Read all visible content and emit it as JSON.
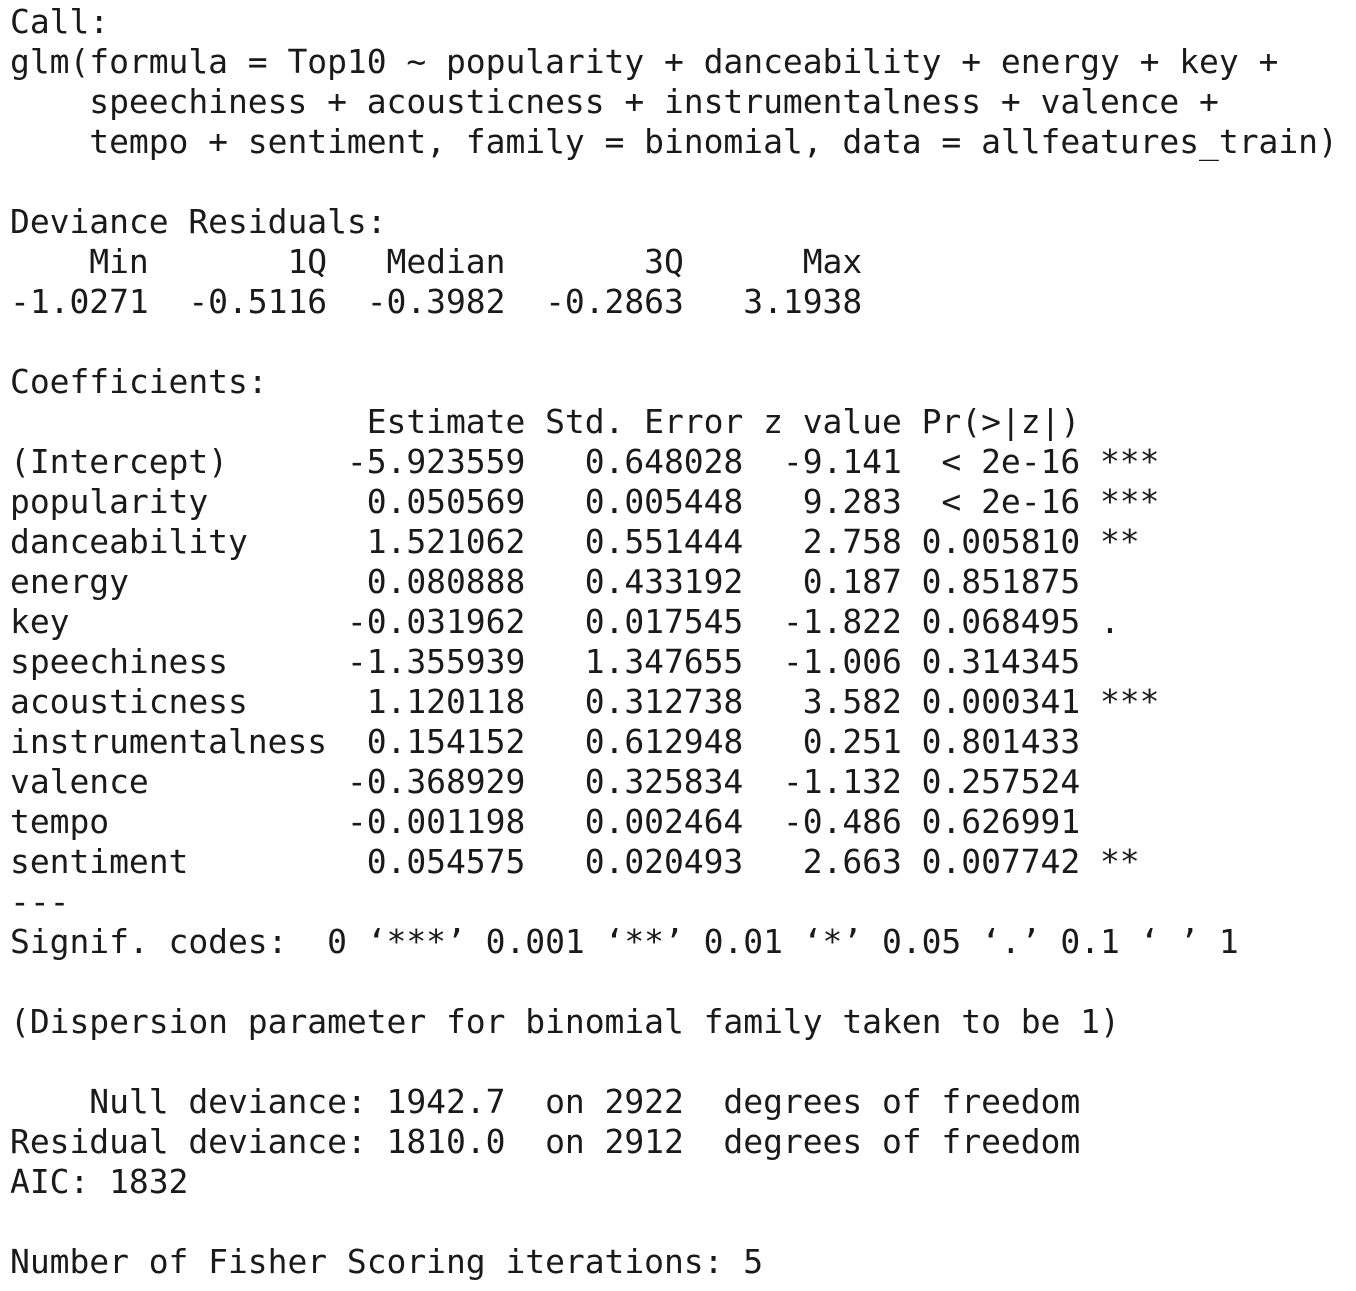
{
  "console": {
    "lines": [
      "Call:",
      "glm(formula = Top10 ~ popularity + danceability + energy + key +",
      "    speechiness + acousticness + instrumentalness + valence +",
      "    tempo + sentiment, family = binomial, data = allfeatures_train)",
      "",
      "Deviance Residuals:",
      "    Min       1Q   Median       3Q      Max",
      "-1.0271  -0.5116  -0.3982  -0.2863   3.1938",
      "",
      "Coefficients:",
      "                  Estimate Std. Error z value Pr(>|z|)",
      "(Intercept)      -5.923559   0.648028  -9.141  < 2e-16 ***",
      "popularity        0.050569   0.005448   9.283  < 2e-16 ***",
      "danceability      1.521062   0.551444   2.758 0.005810 **",
      "energy            0.080888   0.433192   0.187 0.851875",
      "key              -0.031962   0.017545  -1.822 0.068495 .",
      "speechiness      -1.355939   1.347655  -1.006 0.314345",
      "acousticness      1.120118   0.312738   3.582 0.000341 ***",
      "instrumentalness  0.154152   0.612948   0.251 0.801433",
      "valence          -0.368929   0.325834  -1.132 0.257524",
      "tempo            -0.001198   0.002464  -0.486 0.626991",
      "sentiment         0.054575   0.020493   2.663 0.007742 **",
      "---",
      "Signif. codes:  0 ‘***’ 0.001 ‘**’ 0.01 ‘*’ 0.05 ‘.’ 0.1 ‘ ’ 1",
      "",
      "(Dispersion parameter for binomial family taken to be 1)",
      "",
      "    Null deviance: 1942.7  on 2922  degrees of freedom",
      "Residual deviance: 1810.0  on 2912  degrees of freedom",
      "AIC: 1832",
      "",
      "Number of Fisher Scoring iterations: 5"
    ]
  }
}
